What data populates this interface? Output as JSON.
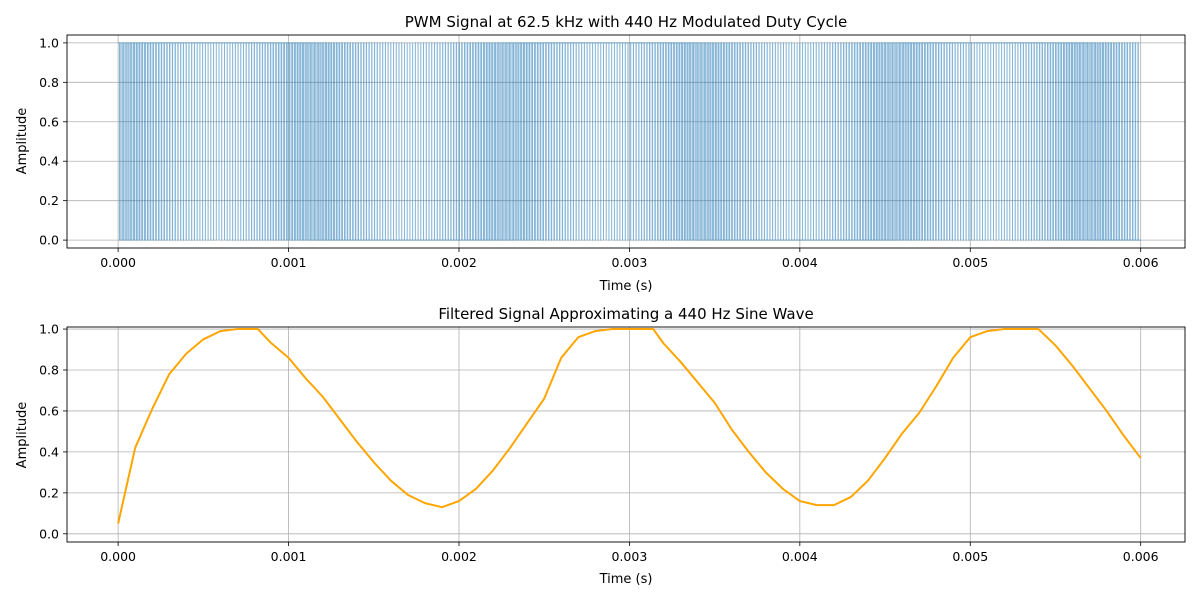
{
  "chart_data": [
    {
      "type": "line",
      "title": "PWM Signal at 62.5 kHz with 440 Hz Modulated Duty Cycle",
      "xlabel": "Time (s)",
      "ylabel": "Amplitude",
      "xlim": [
        -0.0003,
        0.00626
      ],
      "ylim": [
        -0.04,
        1.04
      ],
      "xticks": [
        "0.000",
        "0.001",
        "0.002",
        "0.003",
        "0.004",
        "0.005",
        "0.006"
      ],
      "yticks": [
        "0.0",
        "0.2",
        "0.4",
        "0.6",
        "0.8",
        "1.0"
      ],
      "grid": true,
      "series": [
        {
          "color": "#1f77b4",
          "pwm": {
            "carrier_hz": 62500,
            "modulation_hz": 440,
            "duration_s": 0.006,
            "duty_min": 0.0,
            "duty_max": 1.0
          }
        }
      ]
    },
    {
      "type": "line",
      "title": "Filtered Signal Approximating a 440 Hz Sine Wave",
      "xlabel": "Time (s)",
      "ylabel": "Amplitude",
      "xlim": [
        -0.0003,
        0.00626
      ],
      "ylim": [
        -0.04,
        1.01
      ],
      "xticks": [
        "0.000",
        "0.001",
        "0.002",
        "0.003",
        "0.004",
        "0.005",
        "0.006"
      ],
      "yticks": [
        "0.0",
        "0.2",
        "0.4",
        "0.6",
        "0.8",
        "1.0"
      ],
      "grid": true,
      "series": [
        {
          "color": "#ffa500",
          "x": [
            0.0,
            0.0001,
            0.0002,
            0.0003,
            0.0004,
            0.0005,
            0.0006,
            0.0007,
            0.00082,
            0.0009,
            0.001,
            0.0011,
            0.0012,
            0.0013,
            0.0014,
            0.0015,
            0.0016,
            0.0017,
            0.0018,
            0.0019,
            0.002,
            0.0021,
            0.0022,
            0.0023,
            0.0024,
            0.0025,
            0.0026,
            0.0027,
            0.0028,
            0.0029,
            0.00314,
            0.0032,
            0.0033,
            0.0034,
            0.0035,
            0.0036,
            0.0037,
            0.0038,
            0.0039,
            0.004,
            0.0041,
            0.0042,
            0.0043,
            0.0044,
            0.0045,
            0.0046,
            0.0047,
            0.0048,
            0.0049,
            0.005,
            0.0051,
            0.0052,
            0.0053,
            0.0054,
            0.0055,
            0.0056,
            0.0057,
            0.0058,
            0.0059,
            0.006
          ],
          "y": [
            0.05,
            0.42,
            0.61,
            0.78,
            0.88,
            0.95,
            0.99,
            1.0,
            1.0,
            0.93,
            0.86,
            0.76,
            0.67,
            0.56,
            0.45,
            0.35,
            0.26,
            0.19,
            0.15,
            0.13,
            0.16,
            0.22,
            0.31,
            0.42,
            0.54,
            0.66,
            0.86,
            0.96,
            0.99,
            1.0,
            1.0,
            0.93,
            0.84,
            0.74,
            0.64,
            0.51,
            0.4,
            0.3,
            0.22,
            0.16,
            0.14,
            0.14,
            0.18,
            0.26,
            0.37,
            0.49,
            0.59,
            0.72,
            0.86,
            0.96,
            0.99,
            1.0,
            1.0,
            1.0,
            0.92,
            0.82,
            0.71,
            0.6,
            0.48,
            0.37
          ]
        }
      ]
    }
  ]
}
